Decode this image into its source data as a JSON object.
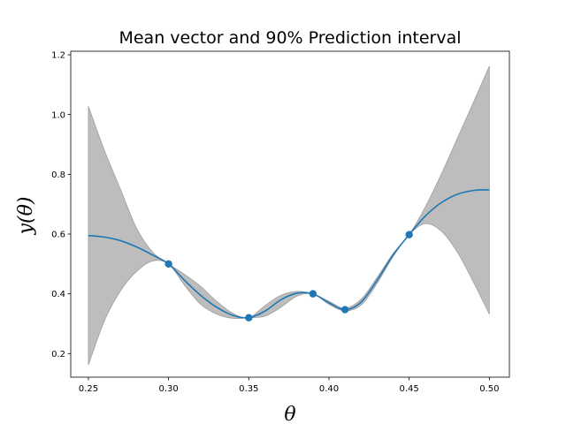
{
  "chart_data": {
    "type": "line",
    "title": "Mean vector and 90% Prediction interval",
    "xlabel": "θ",
    "ylabel": "y(θ)",
    "xlim": [
      0.239,
      0.5125
    ],
    "ylim": [
      0.121,
      1.212
    ],
    "xticks": [
      0.25,
      0.3,
      0.35,
      0.4,
      0.45,
      0.5
    ],
    "xtick_labels": [
      "0.25",
      "0.30",
      "0.35",
      "0.40",
      "0.45",
      "0.50"
    ],
    "yticks": [
      0.2,
      0.4,
      0.6,
      0.8,
      1.0,
      1.2
    ],
    "ytick_labels": [
      "0.2",
      "0.4",
      "0.6",
      "0.8",
      "1.0",
      "1.2"
    ],
    "grid": false,
    "colors": {
      "mean_line": "#1f77b4",
      "band_fill": "#bdbdbd",
      "band_edge": "#9e9e9e"
    },
    "mean": {
      "x": [
        0.25,
        0.26,
        0.27,
        0.28,
        0.29,
        0.3,
        0.31,
        0.32,
        0.33,
        0.34,
        0.35,
        0.36,
        0.37,
        0.38,
        0.39,
        0.4,
        0.41,
        0.42,
        0.43,
        0.44,
        0.45,
        0.46,
        0.47,
        0.48,
        0.49,
        0.5
      ],
      "y": [
        0.595,
        0.59,
        0.578,
        0.557,
        0.53,
        0.5,
        0.445,
        0.395,
        0.355,
        0.328,
        0.32,
        0.342,
        0.38,
        0.402,
        0.4,
        0.37,
        0.347,
        0.372,
        0.445,
        0.53,
        0.598,
        0.66,
        0.705,
        0.733,
        0.746,
        0.748
      ]
    },
    "band": {
      "x": [
        0.25,
        0.26,
        0.27,
        0.28,
        0.29,
        0.3,
        0.31,
        0.32,
        0.33,
        0.34,
        0.35,
        0.36,
        0.37,
        0.38,
        0.39,
        0.4,
        0.41,
        0.42,
        0.43,
        0.44,
        0.45,
        0.46,
        0.47,
        0.48,
        0.49,
        0.5
      ],
      "upper": [
        1.028,
        0.88,
        0.75,
        0.62,
        0.54,
        0.5,
        0.465,
        0.425,
        0.375,
        0.335,
        0.32,
        0.36,
        0.395,
        0.408,
        0.4,
        0.375,
        0.352,
        0.382,
        0.455,
        0.535,
        0.598,
        0.69,
        0.8,
        0.92,
        1.04,
        1.162
      ],
      "lower": [
        0.162,
        0.31,
        0.41,
        0.475,
        0.51,
        0.5,
        0.428,
        0.365,
        0.332,
        0.318,
        0.32,
        0.325,
        0.355,
        0.392,
        0.4,
        0.365,
        0.343,
        0.362,
        0.435,
        0.525,
        0.598,
        0.635,
        0.61,
        0.54,
        0.44,
        0.332
      ]
    },
    "observations": {
      "x": [
        0.3,
        0.35,
        0.39,
        0.41,
        0.45
      ],
      "y": [
        0.5,
        0.32,
        0.4,
        0.347,
        0.598
      ]
    }
  }
}
